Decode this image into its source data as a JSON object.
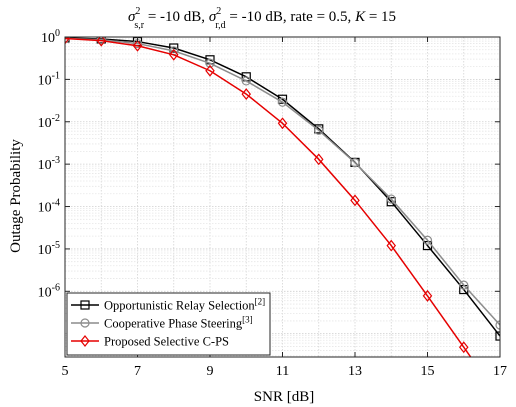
{
  "chart_data": {
    "type": "line",
    "title": {
      "sigma": "σ",
      "sup1": "2",
      "sub1": "s,r",
      "part1": " = -10 dB, ",
      "sup2": "2",
      "sub2": "r,d",
      "part2": " = -10 dB, rate = 0.5, ",
      "k_label": "K",
      "part3": " = 15"
    },
    "xlabel": "SNR [dB]",
    "ylabel": "Outage Probability",
    "xlim": [
      5,
      17
    ],
    "ylim_log10": [
      -7.55,
      0
    ],
    "yscale": "log",
    "grid": true,
    "x_ticks": [
      "5",
      "7",
      "9",
      "11",
      "13",
      "15",
      "17"
    ],
    "y_ticks": [
      {
        "base": "10",
        "exp": "0",
        "value": 1
      },
      {
        "base": "10",
        "exp": "-1",
        "value": 0.1
      },
      {
        "base": "10",
        "exp": "-2",
        "value": 0.01
      },
      {
        "base": "10",
        "exp": "-3",
        "value": 0.001
      },
      {
        "base": "10",
        "exp": "-4",
        "value": 0.0001
      },
      {
        "base": "10",
        "exp": "-5",
        "value": 1e-05
      },
      {
        "base": "10",
        "exp": "-6",
        "value": 1e-06
      }
    ],
    "legend_position": "bottom-left",
    "x": [
      5,
      6,
      7,
      8,
      9,
      10,
      11,
      12,
      13,
      14,
      15,
      16,
      17
    ],
    "series": [
      {
        "name": "Opportunistic Relay Selection",
        "ref": "[2]",
        "color": "#000000",
        "marker": "square",
        "values": [
          0.95,
          0.9,
          0.78,
          0.55,
          0.29,
          0.115,
          0.034,
          0.0068,
          0.0011,
          0.00013,
          1.2e-05,
          1.1e-06,
          8.8e-08
        ]
      },
      {
        "name": "Cooperative Phase Steering",
        "ref": "[3]",
        "color": "#8c8c8c",
        "marker": "circle",
        "values": [
          0.93,
          0.86,
          0.7,
          0.47,
          0.24,
          0.092,
          0.029,
          0.0063,
          0.00108,
          0.00015,
          1.6e-05,
          1.4e-06,
          1.6e-07
        ]
      },
      {
        "name": "Proposed Selective C-PS",
        "ref": "",
        "color": "#e60000",
        "marker": "diamond",
        "values": [
          0.92,
          0.82,
          0.62,
          0.38,
          0.16,
          0.045,
          0.0092,
          0.0013,
          0.00014,
          1.2e-05,
          7.8e-07,
          4.8e-08,
          null
        ]
      }
    ]
  }
}
